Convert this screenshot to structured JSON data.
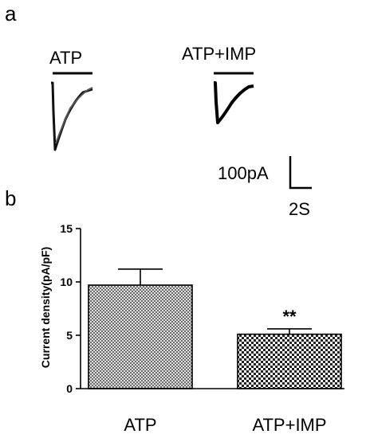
{
  "panels": {
    "a": "a",
    "b": "b"
  },
  "traces": {
    "labels": [
      "ATP",
      "ATP+IMP"
    ]
  },
  "scale_bar": {
    "current_label": "100pA",
    "time_label": "2S"
  },
  "chart_data": {
    "type": "bar",
    "title": "",
    "xlabel": "",
    "ylabel": "Current density(pA/pF)",
    "categories": [
      "ATP",
      "ATP+IMP"
    ],
    "values": [
      9.7,
      5.1
    ],
    "errors": [
      1.5,
      0.5
    ],
    "significance": [
      "",
      "**"
    ],
    "ylim": [
      0,
      15
    ],
    "yticks": [
      0,
      5,
      10,
      15
    ],
    "grid": false,
    "fill_patterns": [
      "crosshatch-fine",
      "checkerboard"
    ]
  }
}
